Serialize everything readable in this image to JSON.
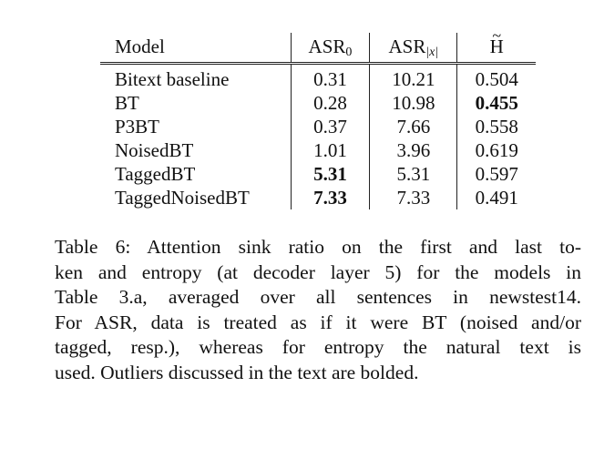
{
  "table": {
    "headers": {
      "model": "Model",
      "asr0": "ASR",
      "asr0_sub": "0",
      "asrx": "ASR",
      "asrx_sub": "|x|",
      "entropy": "H",
      "entropy_accent": "~"
    },
    "rows": [
      {
        "model": "Bitext baseline",
        "asr0": "0.31",
        "asrx": "10.21",
        "entropy": "0.504",
        "bold": []
      },
      {
        "model": "BT",
        "asr0": "0.28",
        "asrx": "10.98",
        "entropy": "0.455",
        "bold": [
          "entropy"
        ]
      },
      {
        "model": "P3BT",
        "asr0": "0.37",
        "asrx": "7.66",
        "entropy": "0.558",
        "bold": []
      },
      {
        "model": "NoisedBT",
        "asr0": "1.01",
        "asrx": "3.96",
        "entropy": "0.619",
        "bold": []
      },
      {
        "model": "TaggedBT",
        "asr0": "5.31",
        "asrx": "5.31",
        "entropy": "0.597",
        "bold": [
          "asr0"
        ]
      },
      {
        "model": "TaggedNoisedBT",
        "asr0": "7.33",
        "asrx": "7.33",
        "entropy": "0.491",
        "bold": [
          "asr0"
        ]
      }
    ]
  },
  "caption": {
    "lines": [
      "Table 6:  Attention sink ratio on the first and last to-",
      "ken and entropy (at decoder layer 5) for the models in",
      "Table 3.a, averaged over all sentences in newstest14.",
      "For ASR, data is treated as if it were BT (noised and/or",
      "tagged, resp.), whereas for entropy the natural text is",
      "used. Outliers discussed in the text are bolded."
    ]
  }
}
